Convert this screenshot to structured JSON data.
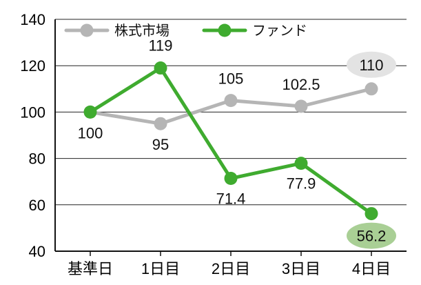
{
  "chart_data": {
    "type": "line",
    "categories": [
      "基準日",
      "1日目",
      "2日目",
      "3日目",
      "4日目"
    ],
    "ylim": [
      40,
      140
    ],
    "yticks": [
      40,
      60,
      80,
      100,
      120,
      140
    ],
    "grid": true,
    "legend_placement": "top-left",
    "series": [
      {
        "name": "株式市場",
        "color": "#b5b5b5",
        "values": [
          100,
          95,
          105,
          102.5,
          110
        ],
        "labels": [
          "",
          "95",
          "105",
          "102.5",
          "110"
        ],
        "highlight_index": 4,
        "highlight_color": "#e3e3e3"
      },
      {
        "name": "ファンド",
        "color": "#3fab2f",
        "values": [
          100,
          119,
          71.4,
          77.9,
          56.2
        ],
        "labels": [
          "100",
          "119",
          "71.4",
          "77.9",
          "56.2"
        ],
        "highlight_index": 4,
        "highlight_color": "#a9cf95"
      }
    ]
  }
}
